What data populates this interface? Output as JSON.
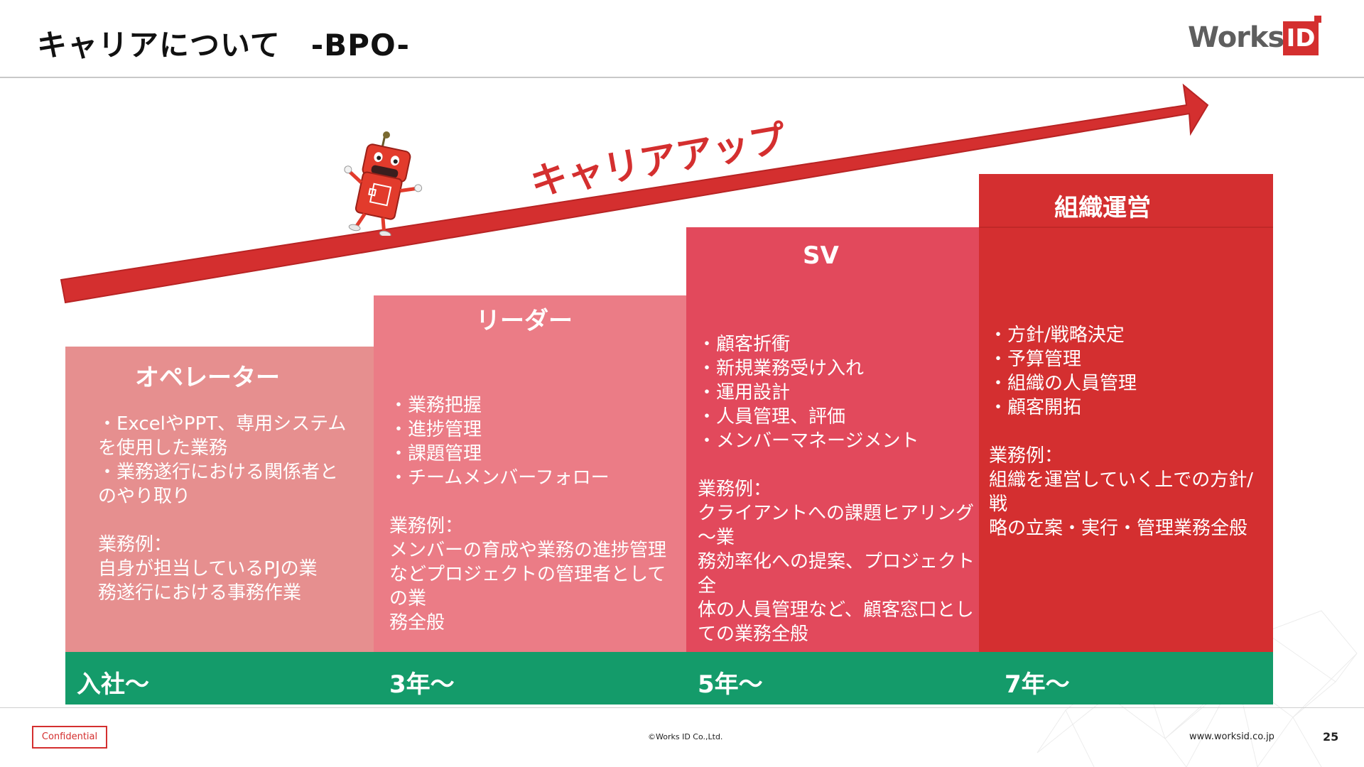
{
  "header": {
    "title": "キャリアについて　-BPO-",
    "logo_text": "Works",
    "logo_badge": "ID"
  },
  "arrow": {
    "label": "キャリアアップ",
    "color": "#d42f2f"
  },
  "steps": [
    {
      "title": "オペレーター",
      "body": "・ExcelやPPT、専用システム\nを使用した業務\n・業務遂行における関係者と\nのやり取り\n\n業務例：\n自身が担当しているPJの業\n務遂行における事務作業",
      "color": "#e68f8f"
    },
    {
      "title": "リーダー",
      "body": "・業務把握\n・進捗管理\n・課題管理\n・チームメンバーフォロー\n\n業務例：\nメンバーの育成や業務の進捗管理\nなどプロジェクトの管理者としての業\n務全般",
      "color": "#eb7c86"
    },
    {
      "title": "SV",
      "body": "・顧客折衝\n・新規業務受け入れ\n・運用設計\n・人員管理、評価\n・メンバーマネージメント\n\n業務例：\nクライアントへの課題ヒアリング～業\n務効率化への提案、プロジェクト全\n体の人員管理など、顧客窓口とし\nての業務全般",
      "color": "#e2495c"
    },
    {
      "title": "組織運営",
      "body": "・方針/戦略決定\n・予算管理\n・組織の人員管理\n・顧客開拓\n\n業務例：\n組織を運営していく上での方針/戦\n略の立案・実行・管理業務全般",
      "color": "#d42f30"
    }
  ],
  "timeline": {
    "labels": [
      "入社～",
      "3年～",
      "5年～",
      "7年～"
    ],
    "color": "#149b6a"
  },
  "footer": {
    "confidential": "Confidential",
    "copyright": "©Works ID Co.,Ltd.",
    "website": "www.worksid.co.jp",
    "page": "25"
  },
  "icons": [
    "mascot-robot-icon",
    "career-arrow-icon",
    "logo-mark-icon"
  ]
}
